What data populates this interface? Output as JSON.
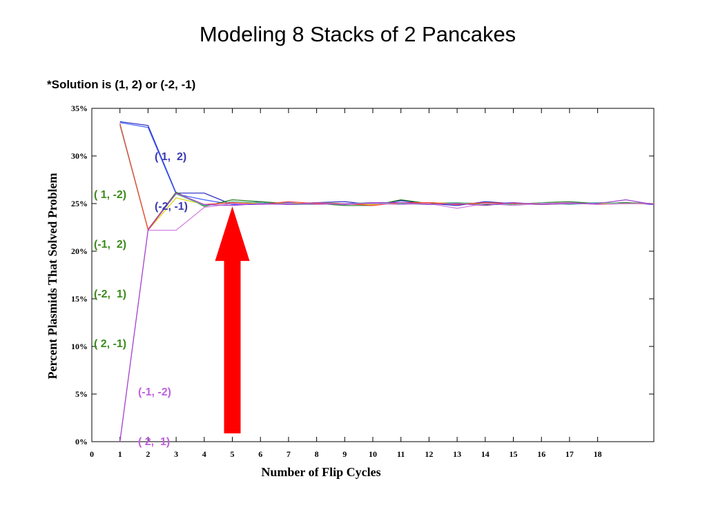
{
  "title": "Modeling 8 Stacks of 2 Pancakes",
  "note": "*Solution is (1, 2) or (-2, -1)",
  "colors": {
    "blue_label": "#3a3ab0",
    "green_label": "#3c8a1c",
    "violet_label": "#c060e0",
    "arrow": "#ff0000"
  },
  "label_groups": [
    {
      "color": "#3a3ab0",
      "lines": [
        "( 1,  2)",
        "(-2, -1)"
      ]
    },
    {
      "color": "#3c8a1c",
      "lines": [
        "( 1, -2)",
        "(-1,  2)",
        "(-2,  1)",
        "( 2, -1)"
      ]
    },
    {
      "color": "#c060e0",
      "lines": [
        "(-1, -2)",
        "( 2,  1)"
      ]
    }
  ],
  "chart_data": {
    "type": "line",
    "xlabel": "Number of Flip Cycles",
    "ylabel": "Percent Plasmids That Solved Problem",
    "xlim": [
      0,
      20
    ],
    "ylim": [
      0,
      35
    ],
    "x_ticks": [
      0,
      1,
      2,
      3,
      4,
      5,
      6,
      7,
      8,
      9,
      10,
      11,
      12,
      13,
      14,
      15,
      16,
      17,
      18
    ],
    "y_ticks": [
      "0%",
      "5%",
      "10%",
      "15%",
      "20%",
      "25%",
      "30%",
      "35%"
    ],
    "y_tick_values": [
      0,
      5,
      10,
      15,
      20,
      25,
      30,
      35
    ],
    "x": [
      1,
      2,
      3,
      4,
      5,
      6,
      7,
      8,
      9,
      10,
      11,
      12,
      13,
      14,
      15,
      16,
      17,
      18,
      19,
      20
    ],
    "series": [
      {
        "color": "#2020c0",
        "values": [
          33.6,
          33.2,
          26.1,
          26.1,
          24.9,
          25.2,
          24.9,
          25.1,
          25.2,
          24.9,
          25.3,
          25.0,
          24.8,
          25.2,
          25.0,
          24.9,
          25.1,
          25.0,
          25.1,
          24.9
        ]
      },
      {
        "color": "#4060ff",
        "values": [
          33.5,
          33.0,
          26.0,
          25.4,
          24.9,
          24.9,
          25.1,
          24.9,
          25.0,
          25.1,
          24.9,
          25.1,
          25.0,
          25.0,
          25.1,
          24.9,
          25.0,
          25.1,
          25.0,
          25.0
        ]
      },
      {
        "color": "#208020",
        "values": [
          33.4,
          22.3,
          26.2,
          24.7,
          25.4,
          25.2,
          25.0,
          25.0,
          24.8,
          24.8,
          25.4,
          25.0,
          25.1,
          24.9,
          24.9,
          25.1,
          25.2,
          25.0,
          25.1,
          25.0
        ]
      },
      {
        "color": "#e0d000",
        "values": [
          33.3,
          22.2,
          25.6,
          24.9,
          25.1,
          25.0,
          25.0,
          25.1,
          25.0,
          24.9,
          25.0,
          25.1,
          25.0,
          25.0,
          25.0,
          24.9,
          25.0,
          25.0,
          25.0,
          25.0
        ]
      },
      {
        "color": "#60c0a0",
        "values": [
          33.2,
          22.3,
          26.0,
          24.8,
          25.2,
          25.1,
          24.9,
          24.9,
          25.0,
          25.1,
          25.0,
          24.9,
          25.1,
          25.0,
          24.9,
          25.1,
          24.9,
          25.1,
          25.0,
          25.0
        ]
      },
      {
        "color": "#ff4040",
        "values": [
          33.4,
          22.3,
          26.1,
          24.9,
          25.1,
          24.9,
          25.2,
          25.0,
          25.0,
          24.8,
          25.1,
          25.1,
          24.9,
          25.1,
          25.0,
          25.0,
          25.1,
          24.9,
          25.0,
          25.0
        ]
      },
      {
        "color": "#d080e0",
        "values": [
          0.0,
          22.2,
          22.2,
          24.6,
          25.0,
          24.9,
          25.0,
          24.9,
          25.0,
          25.0,
          24.9,
          25.0,
          24.5,
          25.0,
          24.8,
          25.0,
          25.1,
          24.9,
          25.0,
          25.0
        ]
      },
      {
        "color": "#a040d0",
        "values": [
          0.0,
          22.2,
          26.1,
          24.9,
          24.8,
          25.0,
          24.9,
          25.1,
          24.9,
          25.1,
          25.1,
          24.9,
          25.0,
          24.8,
          25.1,
          24.9,
          25.0,
          25.0,
          25.4,
          24.9
        ]
      }
    ]
  }
}
